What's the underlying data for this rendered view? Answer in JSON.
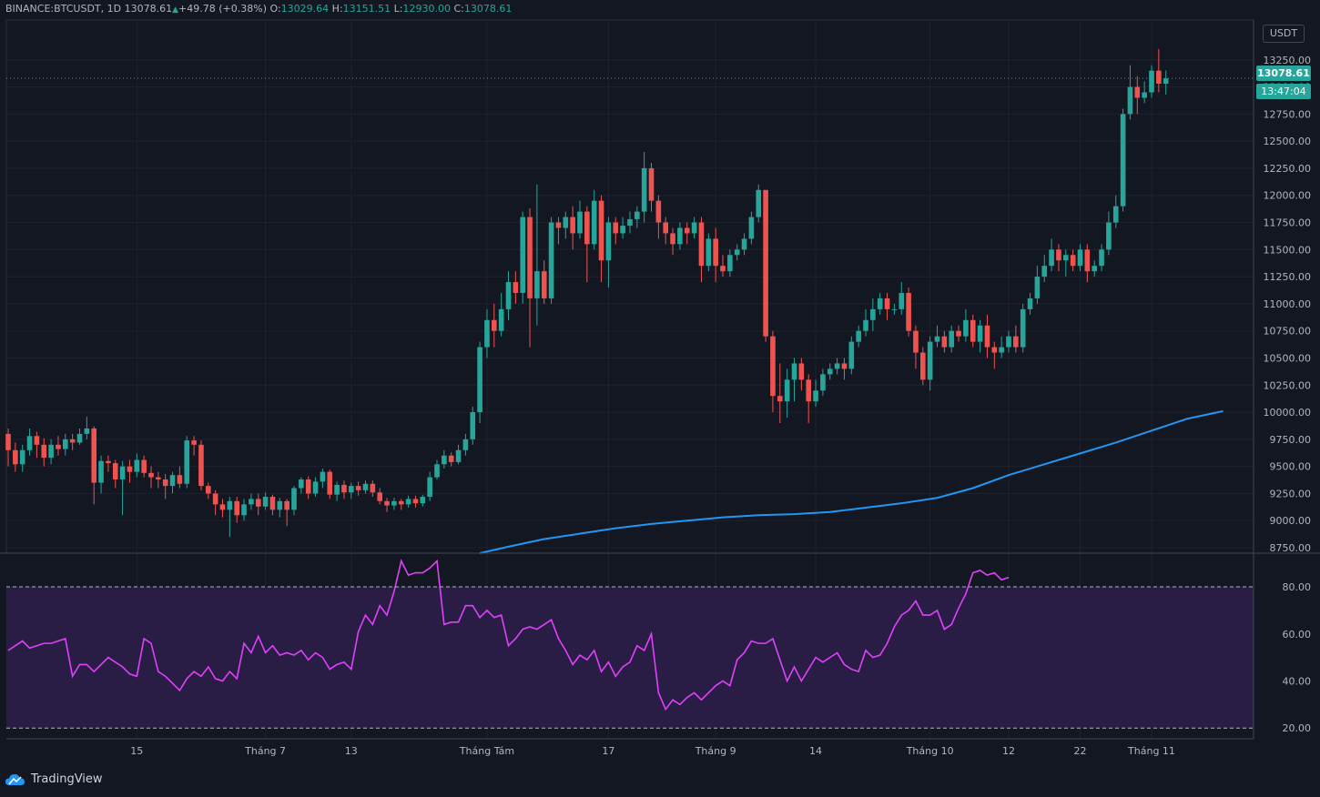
{
  "header": {
    "symbol": "BINANCE:BTCUSDT,",
    "timeframe": "1D",
    "last": "13078.61",
    "change": "+49.78",
    "change_pct": "(+0.38%)",
    "o_label": "O:",
    "o": "13029.64",
    "h_label": "H:",
    "h": "13151.51",
    "l_label": "L:",
    "l": "12930.00",
    "c_label": "C:",
    "c": "13078.61"
  },
  "currency_button": "USDT",
  "last_price_badge": "13078.61",
  "countdown_badge": "13:47:04",
  "logo_text": "TradingView",
  "colors": {
    "background": "#131722",
    "up": "#26a69a",
    "down": "#ef5350",
    "ma": "#2196f3",
    "rsi": "#e040fb",
    "rsi_band": "#2a1d45"
  },
  "chart_data": [
    {
      "type": "candlestick",
      "name": "BTCUSDT 1D",
      "ylim": [
        8700,
        13550
      ],
      "y_ticks": [
        "8750.00",
        "9000.00",
        "9250.00",
        "9500.00",
        "9750.00",
        "10000.00",
        "10250.00",
        "10500.00",
        "10750.00",
        "11000.00",
        "11250.00",
        "11500.00",
        "11750.00",
        "12000.00",
        "12250.00",
        "12500.00",
        "12750.00",
        "13000.00",
        "13250.00"
      ],
      "x_ticks": [
        {
          "i": 18,
          "label": "15"
        },
        {
          "i": 36,
          "label": "Tháng 7"
        },
        {
          "i": 48,
          "label": "13"
        },
        {
          "i": 67,
          "label": "Tháng Tám"
        },
        {
          "i": 84,
          "label": "17"
        },
        {
          "i": 99,
          "label": "Tháng 9"
        },
        {
          "i": 113,
          "label": "14"
        },
        {
          "i": 129,
          "label": "Tháng 10"
        },
        {
          "i": 140,
          "label": "12"
        },
        {
          "i": 150,
          "label": "22"
        },
        {
          "i": 160,
          "label": "Tháng 11"
        }
      ],
      "candles": [
        [
          9800,
          9650,
          9850,
          9500
        ],
        [
          9650,
          9520,
          9720,
          9450
        ],
        [
          9520,
          9650,
          9700,
          9450
        ],
        [
          9650,
          9780,
          9850,
          9600
        ],
        [
          9780,
          9700,
          9820,
          9580
        ],
        [
          9700,
          9580,
          9760,
          9500
        ],
        [
          9580,
          9700,
          9750,
          9520
        ],
        [
          9700,
          9660,
          9780,
          9600
        ],
        [
          9660,
          9750,
          9800,
          9600
        ],
        [
          9750,
          9720,
          9800,
          9650
        ],
        [
          9720,
          9800,
          9850,
          9700
        ],
        [
          9800,
          9850,
          9960,
          9750
        ],
        [
          9850,
          9350,
          9870,
          9150
        ],
        [
          9350,
          9550,
          9600,
          9250
        ],
        [
          9550,
          9530,
          9600,
          9450
        ],
        [
          9530,
          9380,
          9560,
          9300
        ],
        [
          9380,
          9500,
          9550,
          9050
        ],
        [
          9500,
          9450,
          9560,
          9350
        ],
        [
          9450,
          9560,
          9620,
          9400
        ],
        [
          9560,
          9440,
          9600,
          9400
        ],
        [
          9440,
          9400,
          9500,
          9300
        ],
        [
          9400,
          9380,
          9450,
          9300
        ],
        [
          9380,
          9320,
          9430,
          9200
        ],
        [
          9320,
          9420,
          9450,
          9250
        ],
        [
          9420,
          9340,
          9500,
          9300
        ],
        [
          9340,
          9740,
          9780,
          9300
        ],
        [
          9740,
          9700,
          9780,
          9600
        ],
        [
          9700,
          9320,
          9740,
          9280
        ],
        [
          9320,
          9250,
          9350,
          9200
        ],
        [
          9250,
          9150,
          9280,
          9050
        ],
        [
          9150,
          9100,
          9200,
          9030
        ],
        [
          9100,
          9180,
          9220,
          8850
        ],
        [
          9180,
          9050,
          9220,
          8980
        ],
        [
          9050,
          9150,
          9200,
          9000
        ],
        [
          9150,
          9200,
          9250,
          9100
        ],
        [
          9200,
          9130,
          9250,
          9050
        ],
        [
          9130,
          9220,
          9260,
          9100
        ],
        [
          9220,
          9100,
          9240,
          9050
        ],
        [
          9100,
          9180,
          9210,
          9030
        ],
        [
          9180,
          9100,
          9200,
          8950
        ],
        [
          9100,
          9300,
          9320,
          9050
        ],
        [
          9300,
          9380,
          9400,
          9250
        ],
        [
          9380,
          9250,
          9410,
          9200
        ],
        [
          9250,
          9360,
          9400,
          9220
        ],
        [
          9360,
          9450,
          9480,
          9300
        ],
        [
          9450,
          9240,
          9470,
          9200
        ],
        [
          9240,
          9330,
          9360,
          9180
        ],
        [
          9330,
          9260,
          9370,
          9200
        ],
        [
          9260,
          9320,
          9350,
          9200
        ],
        [
          9320,
          9280,
          9360,
          9230
        ],
        [
          9280,
          9340,
          9370,
          9250
        ],
        [
          9340,
          9260,
          9370,
          9220
        ],
        [
          9260,
          9180,
          9300,
          9150
        ],
        [
          9180,
          9140,
          9210,
          9080
        ],
        [
          9140,
          9180,
          9210,
          9100
        ],
        [
          9180,
          9150,
          9200,
          9100
        ],
        [
          9150,
          9200,
          9230,
          9120
        ],
        [
          9200,
          9160,
          9230,
          9120
        ],
        [
          9160,
          9220,
          9240,
          9130
        ],
        [
          9220,
          9400,
          9450,
          9180
        ],
        [
          9400,
          9520,
          9560,
          9380
        ],
        [
          9520,
          9600,
          9650,
          9480
        ],
        [
          9600,
          9540,
          9630,
          9500
        ],
        [
          9540,
          9650,
          9700,
          9520
        ],
        [
          9650,
          9750,
          9800,
          9600
        ],
        [
          9750,
          10000,
          10050,
          9700
        ],
        [
          10000,
          10600,
          10650,
          9900
        ],
        [
          10600,
          10850,
          10950,
          10500
        ],
        [
          10850,
          10750,
          11000,
          10600
        ],
        [
          10750,
          10950,
          11100,
          10700
        ],
        [
          10950,
          11200,
          11300,
          10850
        ],
        [
          11200,
          11100,
          11300,
          11000
        ],
        [
          11100,
          11800,
          11850,
          11000
        ],
        [
          11800,
          11050,
          11880,
          10600
        ],
        [
          11050,
          11300,
          12100,
          10800
        ],
        [
          11300,
          11050,
          11400,
          11000
        ],
        [
          11050,
          11750,
          11800,
          11000
        ],
        [
          11750,
          11700,
          11800,
          11550
        ],
        [
          11700,
          11800,
          11850,
          11600
        ],
        [
          11800,
          11650,
          11900,
          11500
        ],
        [
          11650,
          11850,
          11950,
          11600
        ],
        [
          11850,
          11550,
          11900,
          11200
        ],
        [
          11550,
          11950,
          12050,
          11500
        ],
        [
          11950,
          11400,
          12000,
          11200
        ],
        [
          11400,
          11750,
          11800,
          11150
        ],
        [
          11750,
          11650,
          11800,
          11550
        ],
        [
          11650,
          11720,
          11800,
          11600
        ],
        [
          11720,
          11780,
          11850,
          11650
        ],
        [
          11780,
          11850,
          11900,
          11700
        ],
        [
          11850,
          12250,
          12400,
          11750
        ],
        [
          12250,
          11950,
          12300,
          11850
        ],
        [
          11950,
          11750,
          12000,
          11600
        ],
        [
          11750,
          11650,
          11800,
          11550
        ],
        [
          11650,
          11550,
          11700,
          11450
        ],
        [
          11550,
          11700,
          11750,
          11500
        ],
        [
          11700,
          11650,
          11750,
          11550
        ],
        [
          11650,
          11750,
          11800,
          11600
        ],
        [
          11750,
          11350,
          11800,
          11200
        ],
        [
          11350,
          11600,
          11650,
          11300
        ],
        [
          11600,
          11350,
          11700,
          11200
        ],
        [
          11350,
          11300,
          11450,
          11250
        ],
        [
          11300,
          11450,
          11500,
          11250
        ],
        [
          11450,
          11500,
          11550,
          11400
        ],
        [
          11500,
          11600,
          11650,
          11450
        ],
        [
          11600,
          11800,
          11850,
          11550
        ],
        [
          11800,
          12050,
          12100,
          11750
        ],
        [
          12050,
          10700,
          12000,
          10650
        ],
        [
          10700,
          10150,
          10750,
          10000
        ],
        [
          10150,
          10100,
          10450,
          9900
        ],
        [
          10100,
          10300,
          10400,
          9950
        ],
        [
          10300,
          10450,
          10500,
          10100
        ],
        [
          10450,
          10300,
          10500,
          10200
        ],
        [
          10300,
          10100,
          10350,
          9900
        ],
        [
          10100,
          10200,
          10300,
          10050
        ],
        [
          10200,
          10350,
          10400,
          10150
        ],
        [
          10350,
          10400,
          10450,
          10300
        ],
        [
          10400,
          10450,
          10500,
          10350
        ],
        [
          10450,
          10400,
          10500,
          10300
        ],
        [
          10400,
          10650,
          10700,
          10350
        ],
        [
          10650,
          10750,
          10800,
          10600
        ],
        [
          10750,
          10850,
          10950,
          10700
        ],
        [
          10850,
          10950,
          11050,
          10750
        ],
        [
          10950,
          11050,
          11100,
          10900
        ],
        [
          11050,
          10950,
          11100,
          10850
        ],
        [
          10950,
          10950,
          11000,
          10900
        ],
        [
          10950,
          11100,
          11200,
          10900
        ],
        [
          11100,
          10750,
          11150,
          10700
        ],
        [
          10750,
          10550,
          10800,
          10400
        ],
        [
          10550,
          10300,
          10600,
          10250
        ],
        [
          10300,
          10650,
          10700,
          10200
        ],
        [
          10650,
          10700,
          10800,
          10600
        ],
        [
          10700,
          10600,
          10750,
          10550
        ],
        [
          10600,
          10750,
          10800,
          10550
        ],
        [
          10750,
          10700,
          10800,
          10650
        ],
        [
          10700,
          10850,
          10950,
          10650
        ],
        [
          10850,
          10650,
          10900,
          10600
        ],
        [
          10650,
          10800,
          10850,
          10550
        ],
        [
          10800,
          10600,
          10900,
          10500
        ],
        [
          10600,
          10550,
          10650,
          10400
        ],
        [
          10550,
          10600,
          10700,
          10500
        ],
        [
          10600,
          10700,
          10750,
          10550
        ],
        [
          10700,
          10600,
          10800,
          10550
        ],
        [
          10600,
          10950,
          11000,
          10550
        ],
        [
          10950,
          11050,
          11100,
          10900
        ],
        [
          11050,
          11250,
          11350,
          11000
        ],
        [
          11250,
          11350,
          11450,
          11200
        ],
        [
          11350,
          11500,
          11600,
          11300
        ],
        [
          11500,
          11400,
          11550,
          11300
        ],
        [
          11400,
          11450,
          11500,
          11250
        ],
        [
          11450,
          11350,
          11500,
          11300
        ],
        [
          11350,
          11500,
          11550,
          11300
        ],
        [
          11500,
          11300,
          11550,
          11200
        ],
        [
          11300,
          11350,
          11400,
          11250
        ],
        [
          11350,
          11500,
          11550,
          11300
        ],
        [
          11500,
          11750,
          11850,
          11450
        ],
        [
          11750,
          11900,
          12000,
          11700
        ],
        [
          11900,
          12750,
          12800,
          11850
        ],
        [
          12750,
          13000,
          13200,
          12700
        ],
        [
          13000,
          12900,
          13100,
          12750
        ],
        [
          12900,
          12950,
          13050,
          12850
        ],
        [
          12950,
          13150,
          13200,
          12900
        ],
        [
          13150,
          13030,
          13350,
          12950
        ],
        [
          13029.64,
          13078.61,
          13151.51,
          12930
        ]
      ],
      "moving_average": [
        [
          66,
          8700
        ],
        [
          70,
          8760
        ],
        [
          75,
          8830
        ],
        [
          80,
          8880
        ],
        [
          85,
          8930
        ],
        [
          90,
          8970
        ],
        [
          95,
          9000
        ],
        [
          100,
          9030
        ],
        [
          105,
          9050
        ],
        [
          110,
          9060
        ],
        [
          115,
          9080
        ],
        [
          120,
          9120
        ],
        [
          125,
          9160
        ],
        [
          130,
          9210
        ],
        [
          135,
          9300
        ],
        [
          140,
          9420
        ],
        [
          145,
          9520
        ],
        [
          150,
          9620
        ],
        [
          155,
          9720
        ],
        [
          160,
          9830
        ],
        [
          165,
          9940
        ],
        [
          170,
          10010
        ]
      ]
    },
    {
      "type": "line",
      "name": "RSI",
      "ylim": [
        17,
        92
      ],
      "y_ticks": [
        "20.00",
        "40.00",
        "60.00",
        "80.00"
      ],
      "levels": [
        20,
        80
      ],
      "values": [
        53,
        55,
        57,
        54,
        55,
        56,
        56,
        57,
        58,
        42,
        47,
        47,
        44,
        47,
        50,
        48,
        46,
        43,
        42,
        58,
        56,
        44,
        42,
        39,
        36,
        41,
        44,
        42,
        46,
        41,
        40,
        44,
        41,
        56,
        52,
        59,
        52,
        55,
        51,
        52,
        51,
        53,
        49,
        52,
        50,
        45,
        47,
        48,
        45,
        61,
        68,
        64,
        72,
        68,
        78,
        91,
        85,
        86,
        86,
        88,
        91,
        64,
        65,
        65,
        72,
        72,
        67,
        70,
        67,
        68,
        55,
        58,
        62,
        63,
        62,
        64,
        66,
        58,
        53,
        47,
        51,
        49,
        53,
        44,
        48,
        42,
        46,
        48,
        55,
        53,
        60,
        35,
        28,
        32,
        30,
        33,
        35,
        32,
        35,
        38,
        40,
        38,
        49,
        52,
        57,
        56,
        56,
        58,
        49,
        40,
        46,
        40,
        45,
        50,
        48,
        50,
        52,
        47,
        45,
        44,
        53,
        50,
        51,
        56,
        63,
        68,
        70,
        74,
        68,
        68,
        70,
        62,
        64,
        71,
        77,
        86,
        87,
        85,
        86,
        83,
        84
      ]
    }
  ]
}
